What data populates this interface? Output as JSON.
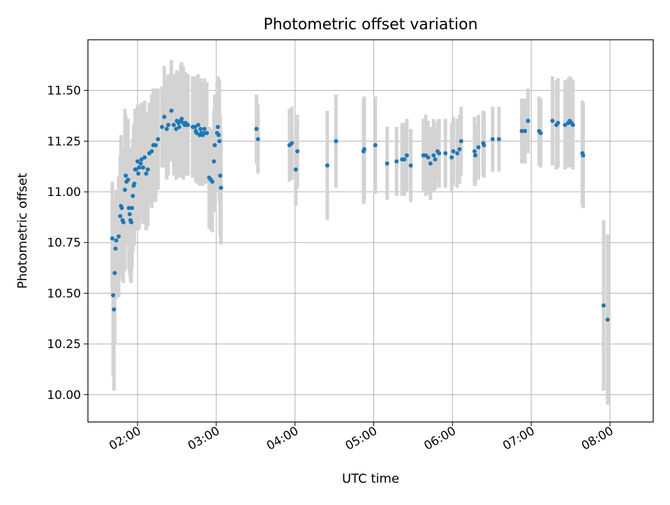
{
  "chart_data": {
    "type": "scatter",
    "title": "Photometric offset variation",
    "xlabel": "UTC time",
    "ylabel": "Photometric offset",
    "x_unit": "UTC hours",
    "xlim": [
      1.37,
      8.55
    ],
    "ylim": [
      9.865,
      11.75
    ],
    "x_ticks": [
      {
        "value": 2,
        "label": "02:00"
      },
      {
        "value": 3,
        "label": "03:00"
      },
      {
        "value": 4,
        "label": "04:00"
      },
      {
        "value": 5,
        "label": "05:00"
      },
      {
        "value": 6,
        "label": "06:00"
      },
      {
        "value": 7,
        "label": "07:00"
      },
      {
        "value": 8,
        "label": "08:00"
      }
    ],
    "y_ticks": [
      {
        "value": 10.0,
        "label": "10.00"
      },
      {
        "value": 10.25,
        "label": "10.25"
      },
      {
        "value": 10.5,
        "label": "10.50"
      },
      {
        "value": 10.75,
        "label": "10.75"
      },
      {
        "value": 11.0,
        "label": "11.00"
      },
      {
        "value": 11.25,
        "label": "11.25"
      },
      {
        "value": 11.5,
        "label": "11.50"
      }
    ],
    "grid": true,
    "colors": {
      "marker": "#1f77b4",
      "errorbar": "#d3d3d3",
      "grid": "#b0b0b0"
    },
    "series": [
      {
        "points": [
          [
            1.68,
            10.77,
            0.28
          ],
          [
            1.69,
            10.49,
            0.4
          ],
          [
            1.7,
            10.42,
            0.4
          ],
          [
            1.71,
            10.6,
            0.35
          ],
          [
            1.72,
            10.72,
            0.25
          ],
          [
            1.73,
            10.76,
            0.25
          ],
          [
            1.76,
            10.78,
            0.3
          ],
          [
            1.78,
            10.88,
            0.3
          ],
          [
            1.79,
            10.93,
            0.35
          ],
          [
            1.8,
            10.92,
            0.3
          ],
          [
            1.81,
            10.86,
            0.3
          ],
          [
            1.82,
            10.85,
            0.3
          ],
          [
            1.84,
            11.01,
            0.4
          ],
          [
            1.85,
            11.08,
            0.3
          ],
          [
            1.86,
            11.05,
            0.3
          ],
          [
            1.88,
            11.06,
            0.3
          ],
          [
            1.89,
            10.92,
            0.3
          ],
          [
            1.9,
            10.89,
            0.3
          ],
          [
            1.91,
            10.86,
            0.3
          ],
          [
            1.92,
            10.85,
            0.3
          ],
          [
            1.93,
            10.92,
            0.3
          ],
          [
            1.94,
            10.98,
            0.28
          ],
          [
            1.95,
            11.03,
            0.3
          ],
          [
            1.96,
            11.04,
            0.3
          ],
          [
            1.97,
            11.11,
            0.3
          ],
          [
            1.98,
            11.11,
            0.3
          ],
          [
            2.0,
            11.15,
            0.28
          ],
          [
            2.01,
            11.09,
            0.28
          ],
          [
            2.02,
            11.12,
            0.3
          ],
          [
            2.04,
            11.14,
            0.28
          ],
          [
            2.05,
            11.16,
            0.28
          ],
          [
            2.07,
            11.12,
            0.28
          ],
          [
            2.09,
            11.17,
            0.28
          ],
          [
            2.11,
            11.09,
            0.28
          ],
          [
            2.13,
            11.11,
            0.28
          ],
          [
            2.15,
            11.19,
            0.25
          ],
          [
            2.18,
            11.2,
            0.28
          ],
          [
            2.2,
            11.23,
            0.28
          ],
          [
            2.23,
            11.23,
            0.28
          ],
          [
            2.26,
            11.26,
            0.25
          ],
          [
            2.31,
            11.32,
            0.2
          ],
          [
            2.34,
            11.37,
            0.25
          ],
          [
            2.37,
            11.31,
            0.25
          ],
          [
            2.39,
            11.33,
            0.25
          ],
          [
            2.43,
            11.4,
            0.25
          ],
          [
            2.46,
            11.33,
            0.25
          ],
          [
            2.49,
            11.31,
            0.25
          ],
          [
            2.5,
            11.35,
            0.25
          ],
          [
            2.52,
            11.34,
            0.25
          ],
          [
            2.53,
            11.32,
            0.25
          ],
          [
            2.55,
            11.35,
            0.28
          ],
          [
            2.56,
            11.36,
            0.28
          ],
          [
            2.58,
            11.34,
            0.28
          ],
          [
            2.6,
            11.33,
            0.25
          ],
          [
            2.61,
            11.34,
            0.25
          ],
          [
            2.62,
            11.33,
            0.25
          ],
          [
            2.64,
            11.33,
            0.25
          ],
          [
            2.7,
            11.32,
            0.25
          ],
          [
            2.73,
            11.32,
            0.25
          ],
          [
            2.74,
            11.3,
            0.25
          ],
          [
            2.75,
            11.29,
            0.25
          ],
          [
            2.77,
            11.33,
            0.25
          ],
          [
            2.79,
            11.28,
            0.25
          ],
          [
            2.8,
            11.31,
            0.25
          ],
          [
            2.81,
            11.29,
            0.25
          ],
          [
            2.83,
            11.28,
            0.25
          ],
          [
            2.84,
            11.29,
            0.25
          ],
          [
            2.85,
            11.31,
            0.25
          ],
          [
            2.88,
            11.29,
            0.25
          ],
          [
            2.91,
            11.07,
            0.25
          ],
          [
            2.93,
            11.06,
            0.25
          ],
          [
            2.95,
            11.05,
            0.25
          ],
          [
            2.97,
            11.15,
            0.25
          ],
          [
            2.98,
            11.23,
            0.25
          ],
          [
            3.01,
            11.29,
            0.25
          ],
          [
            3.02,
            11.32,
            0.25
          ],
          [
            3.03,
            11.28,
            0.28
          ],
          [
            3.04,
            11.25,
            0.3
          ],
          [
            3.05,
            11.08,
            0.3
          ],
          [
            3.06,
            11.02,
            0.28
          ],
          [
            3.51,
            11.31,
            0.17
          ],
          [
            3.53,
            11.26,
            0.17
          ],
          [
            3.93,
            11.23,
            0.18
          ],
          [
            3.96,
            11.24,
            0.18
          ],
          [
            4.01,
            11.11,
            0.18
          ],
          [
            4.03,
            11.2,
            0.18
          ],
          [
            4.41,
            11.13,
            0.27
          ],
          [
            4.52,
            11.25,
            0.23
          ],
          [
            4.87,
            11.2,
            0.26
          ],
          [
            4.88,
            11.21,
            0.26
          ],
          [
            5.02,
            11.23,
            0.24
          ],
          [
            5.17,
            11.14,
            0.18
          ],
          [
            5.29,
            11.15,
            0.17
          ],
          [
            5.36,
            11.16,
            0.18
          ],
          [
            5.39,
            11.16,
            0.18
          ],
          [
            5.42,
            11.18,
            0.18
          ],
          [
            5.47,
            11.13,
            0.18
          ],
          [
            5.63,
            11.18,
            0.18
          ],
          [
            5.66,
            11.18,
            0.2
          ],
          [
            5.69,
            11.17,
            0.18
          ],
          [
            5.72,
            11.14,
            0.18
          ],
          [
            5.76,
            11.18,
            0.18
          ],
          [
            5.78,
            11.16,
            0.15
          ],
          [
            5.81,
            11.2,
            0.15
          ],
          [
            5.83,
            11.19,
            0.17
          ],
          [
            5.91,
            11.19,
            0.17
          ],
          [
            5.99,
            11.17,
            0.17
          ],
          [
            6.01,
            11.2,
            0.17
          ],
          [
            6.06,
            11.19,
            0.17
          ],
          [
            6.09,
            11.21,
            0.17
          ],
          [
            6.11,
            11.25,
            0.17
          ],
          [
            6.28,
            11.2,
            0.17
          ],
          [
            6.29,
            11.18,
            0.15
          ],
          [
            6.33,
            11.22,
            0.16
          ],
          [
            6.39,
            11.24,
            0.16
          ],
          [
            6.4,
            11.23,
            0.16
          ],
          [
            6.51,
            11.26,
            0.16
          ],
          [
            6.59,
            11.26,
            0.16
          ],
          [
            6.88,
            11.3,
            0.16
          ],
          [
            6.92,
            11.3,
            0.16
          ],
          [
            6.96,
            11.35,
            0.16
          ],
          [
            7.1,
            11.3,
            0.17
          ],
          [
            7.12,
            11.29,
            0.17
          ],
          [
            7.27,
            11.35,
            0.22
          ],
          [
            7.32,
            11.33,
            0.22
          ],
          [
            7.34,
            11.34,
            0.22
          ],
          [
            7.43,
            11.33,
            0.22
          ],
          [
            7.47,
            11.34,
            0.22
          ],
          [
            7.49,
            11.35,
            0.22
          ],
          [
            7.51,
            11.34,
            0.22
          ],
          [
            7.53,
            11.33,
            0.22
          ],
          [
            7.65,
            11.19,
            0.26
          ],
          [
            7.66,
            11.18,
            0.26
          ],
          [
            7.92,
            10.44,
            0.42
          ],
          [
            7.97,
            10.37,
            0.42
          ]
        ]
      }
    ]
  }
}
